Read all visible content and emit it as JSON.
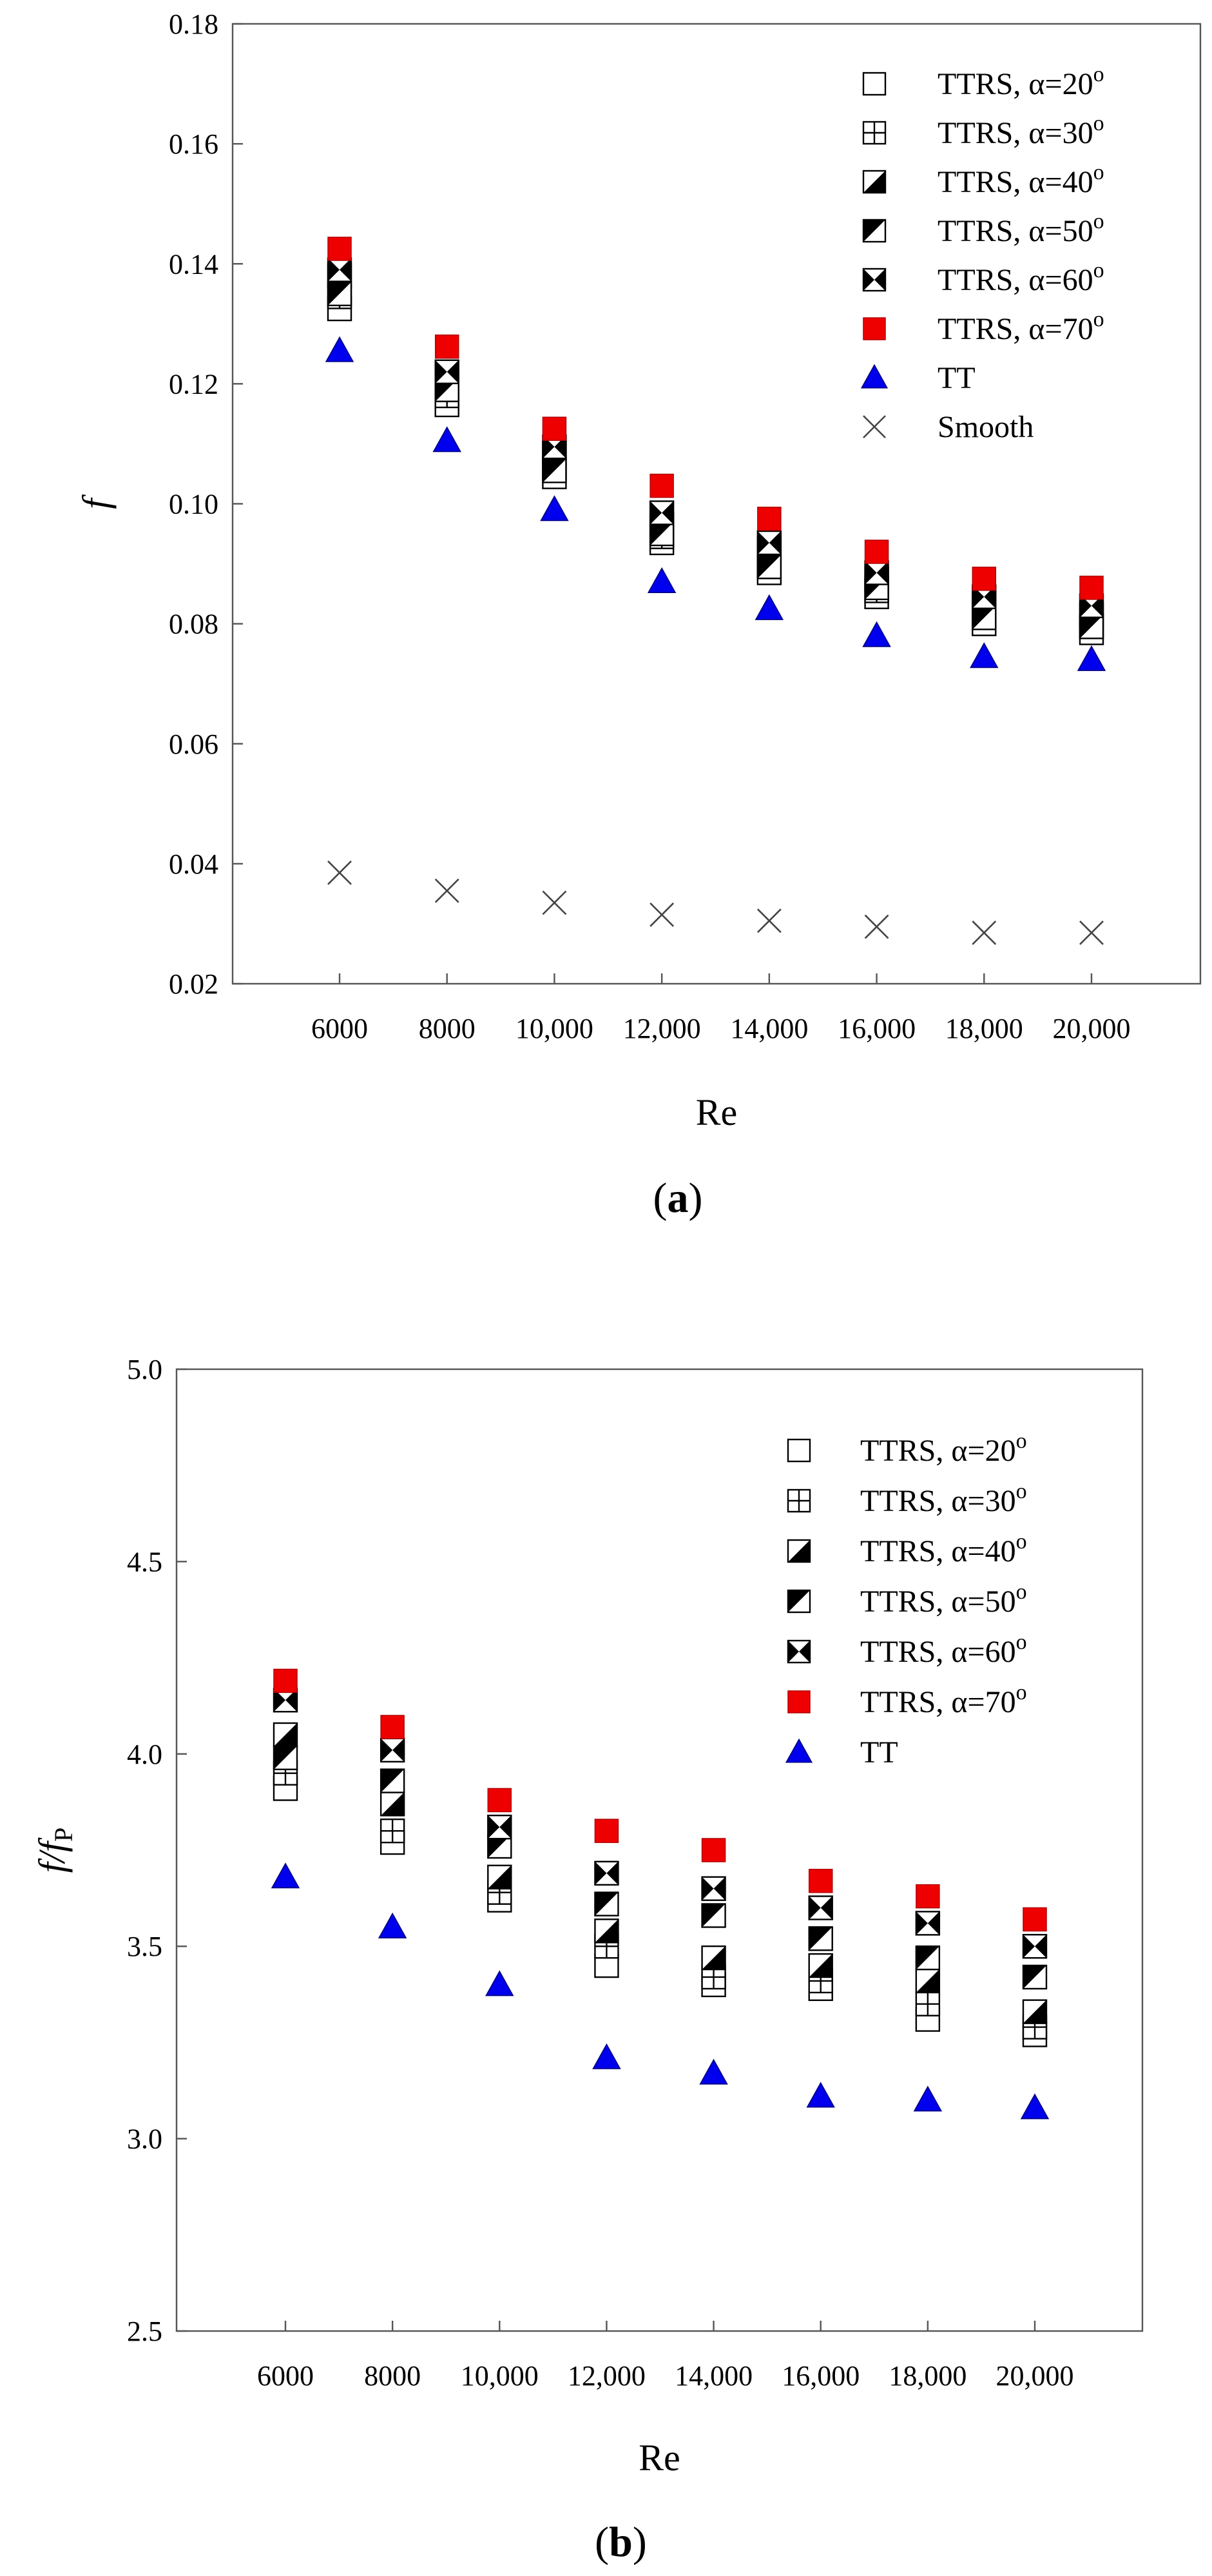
{
  "figure": {
    "panels": [
      "a",
      "b"
    ]
  },
  "chart_data": [
    {
      "type": "scatter",
      "panel_label": "a",
      "title": "",
      "xlabel": "Re",
      "ylabel": "f",
      "x": [
        6000,
        8000,
        10000,
        12000,
        14000,
        16000,
        18000,
        20000
      ],
      "xtick_labels": [
        "6000",
        "8000",
        "10,000",
        "12,000",
        "14,000",
        "16,000",
        "18,000",
        "20,000"
      ],
      "ylim": [
        0.02,
        0.18
      ],
      "yticks": [
        0.02,
        0.04,
        0.06,
        0.08,
        0.1,
        0.12,
        0.14,
        0.16,
        0.18
      ],
      "ytick_labels": [
        "0.02",
        "0.04",
        "0.06",
        "0.08",
        "0.10",
        "0.12",
        "0.14",
        "0.16",
        "0.18"
      ],
      "legend_position": "top-right",
      "series": [
        {
          "name": "TTRS, α=20",
          "superscript": "o",
          "marker": "square-open",
          "values": [
            0.1325,
            0.1165,
            0.1045,
            0.0935,
            0.0885,
            0.0845,
            0.08,
            0.0785
          ]
        },
        {
          "name": "TTRS, α=30",
          "superscript": "o",
          "marker": "square-cross",
          "values": [
            0.1345,
            0.118,
            0.106,
            0.0945,
            0.0895,
            0.0855,
            0.081,
            0.0795
          ]
        },
        {
          "name": "TTRS, α=40",
          "superscript": "o",
          "marker": "square-half-lower",
          "values": [
            0.138,
            0.1205,
            0.1085,
            0.0965,
            0.0925,
            0.0875,
            0.083,
            0.0815
          ]
        },
        {
          "name": "TTRS, α=50",
          "superscript": "o",
          "marker": "square-half-upper",
          "values": [
            0.135,
            0.119,
            0.1055,
            0.095,
            0.0895,
            0.086,
            0.081,
            0.0795
          ]
        },
        {
          "name": "TTRS, α=60",
          "superscript": "o",
          "marker": "square-hourglass",
          "values": [
            0.139,
            0.122,
            0.1095,
            0.0985,
            0.0935,
            0.0885,
            0.0845,
            0.083
          ]
        },
        {
          "name": "TTRS, α=70",
          "superscript": "o",
          "marker": "square-red",
          "values": [
            0.1425,
            0.1262,
            0.1125,
            0.103,
            0.0975,
            0.092,
            0.0875,
            0.086
          ]
        },
        {
          "name": "TT",
          "superscript": "",
          "marker": "triangle-blue",
          "values": [
            0.1255,
            0.1105,
            0.099,
            0.087,
            0.0825,
            0.078,
            0.0745,
            0.074
          ]
        },
        {
          "name": "Smooth",
          "superscript": "",
          "marker": "x",
          "values": [
            0.0385,
            0.0355,
            0.0335,
            0.0315,
            0.0305,
            0.0295,
            0.0285,
            0.0285
          ]
        }
      ]
    },
    {
      "type": "scatter",
      "panel_label": "b",
      "title": "",
      "xlabel": "Re",
      "ylabel": "f/f",
      "ylabel_subscript": "P",
      "x": [
        6000,
        8000,
        10000,
        12000,
        14000,
        16000,
        18000,
        20000
      ],
      "xtick_labels": [
        "6000",
        "8000",
        "10,000",
        "12,000",
        "14,000",
        "16,000",
        "18,000",
        "20,000"
      ],
      "ylim": [
        2.5,
        5.0
      ],
      "yticks": [
        2.5,
        3.0,
        3.5,
        4.0,
        4.5,
        5.0
      ],
      "ytick_labels": [
        "2.5",
        "3.0",
        "3.5",
        "4.0",
        "4.5",
        "5.0"
      ],
      "legend_position": "top-right",
      "series": [
        {
          "name": "TTRS, α=20",
          "superscript": "o",
          "marker": "square-open",
          "values": [
            3.91,
            3.77,
            3.62,
            3.45,
            3.4,
            3.39,
            3.31,
            3.27
          ]
        },
        {
          "name": "TTRS, α=30",
          "superscript": "o",
          "marker": "square-cross",
          "values": [
            3.95,
            3.8,
            3.64,
            3.5,
            3.42,
            3.41,
            3.35,
            3.29
          ]
        },
        {
          "name": "TTRS, α=40",
          "superscript": "o",
          "marker": "square-half-lower",
          "values": [
            4.05,
            3.87,
            3.68,
            3.54,
            3.47,
            3.45,
            3.41,
            3.33
          ]
        },
        {
          "name": "TTRS, α=50",
          "superscript": "o",
          "marker": "square-half-upper",
          "values": [
            3.99,
            3.93,
            3.76,
            3.61,
            3.58,
            3.52,
            3.47,
            3.42
          ]
        },
        {
          "name": "TTRS, α=60",
          "superscript": "o",
          "marker": "square-hourglass",
          "values": [
            4.14,
            4.01,
            3.81,
            3.69,
            3.65,
            3.6,
            3.56,
            3.5
          ]
        },
        {
          "name": "TTRS, α=70",
          "superscript": "o",
          "marker": "square-red",
          "values": [
            4.19,
            4.07,
            3.88,
            3.8,
            3.75,
            3.67,
            3.63,
            3.57
          ]
        },
        {
          "name": "TT",
          "superscript": "",
          "marker": "triangle-blue",
          "values": [
            3.68,
            3.55,
            3.4,
            3.21,
            3.17,
            3.11,
            3.1,
            3.08
          ]
        }
      ]
    }
  ],
  "colors": {
    "red_marker": "#ee0000",
    "blue_marker": "#0000ee",
    "axis": "#555555"
  }
}
